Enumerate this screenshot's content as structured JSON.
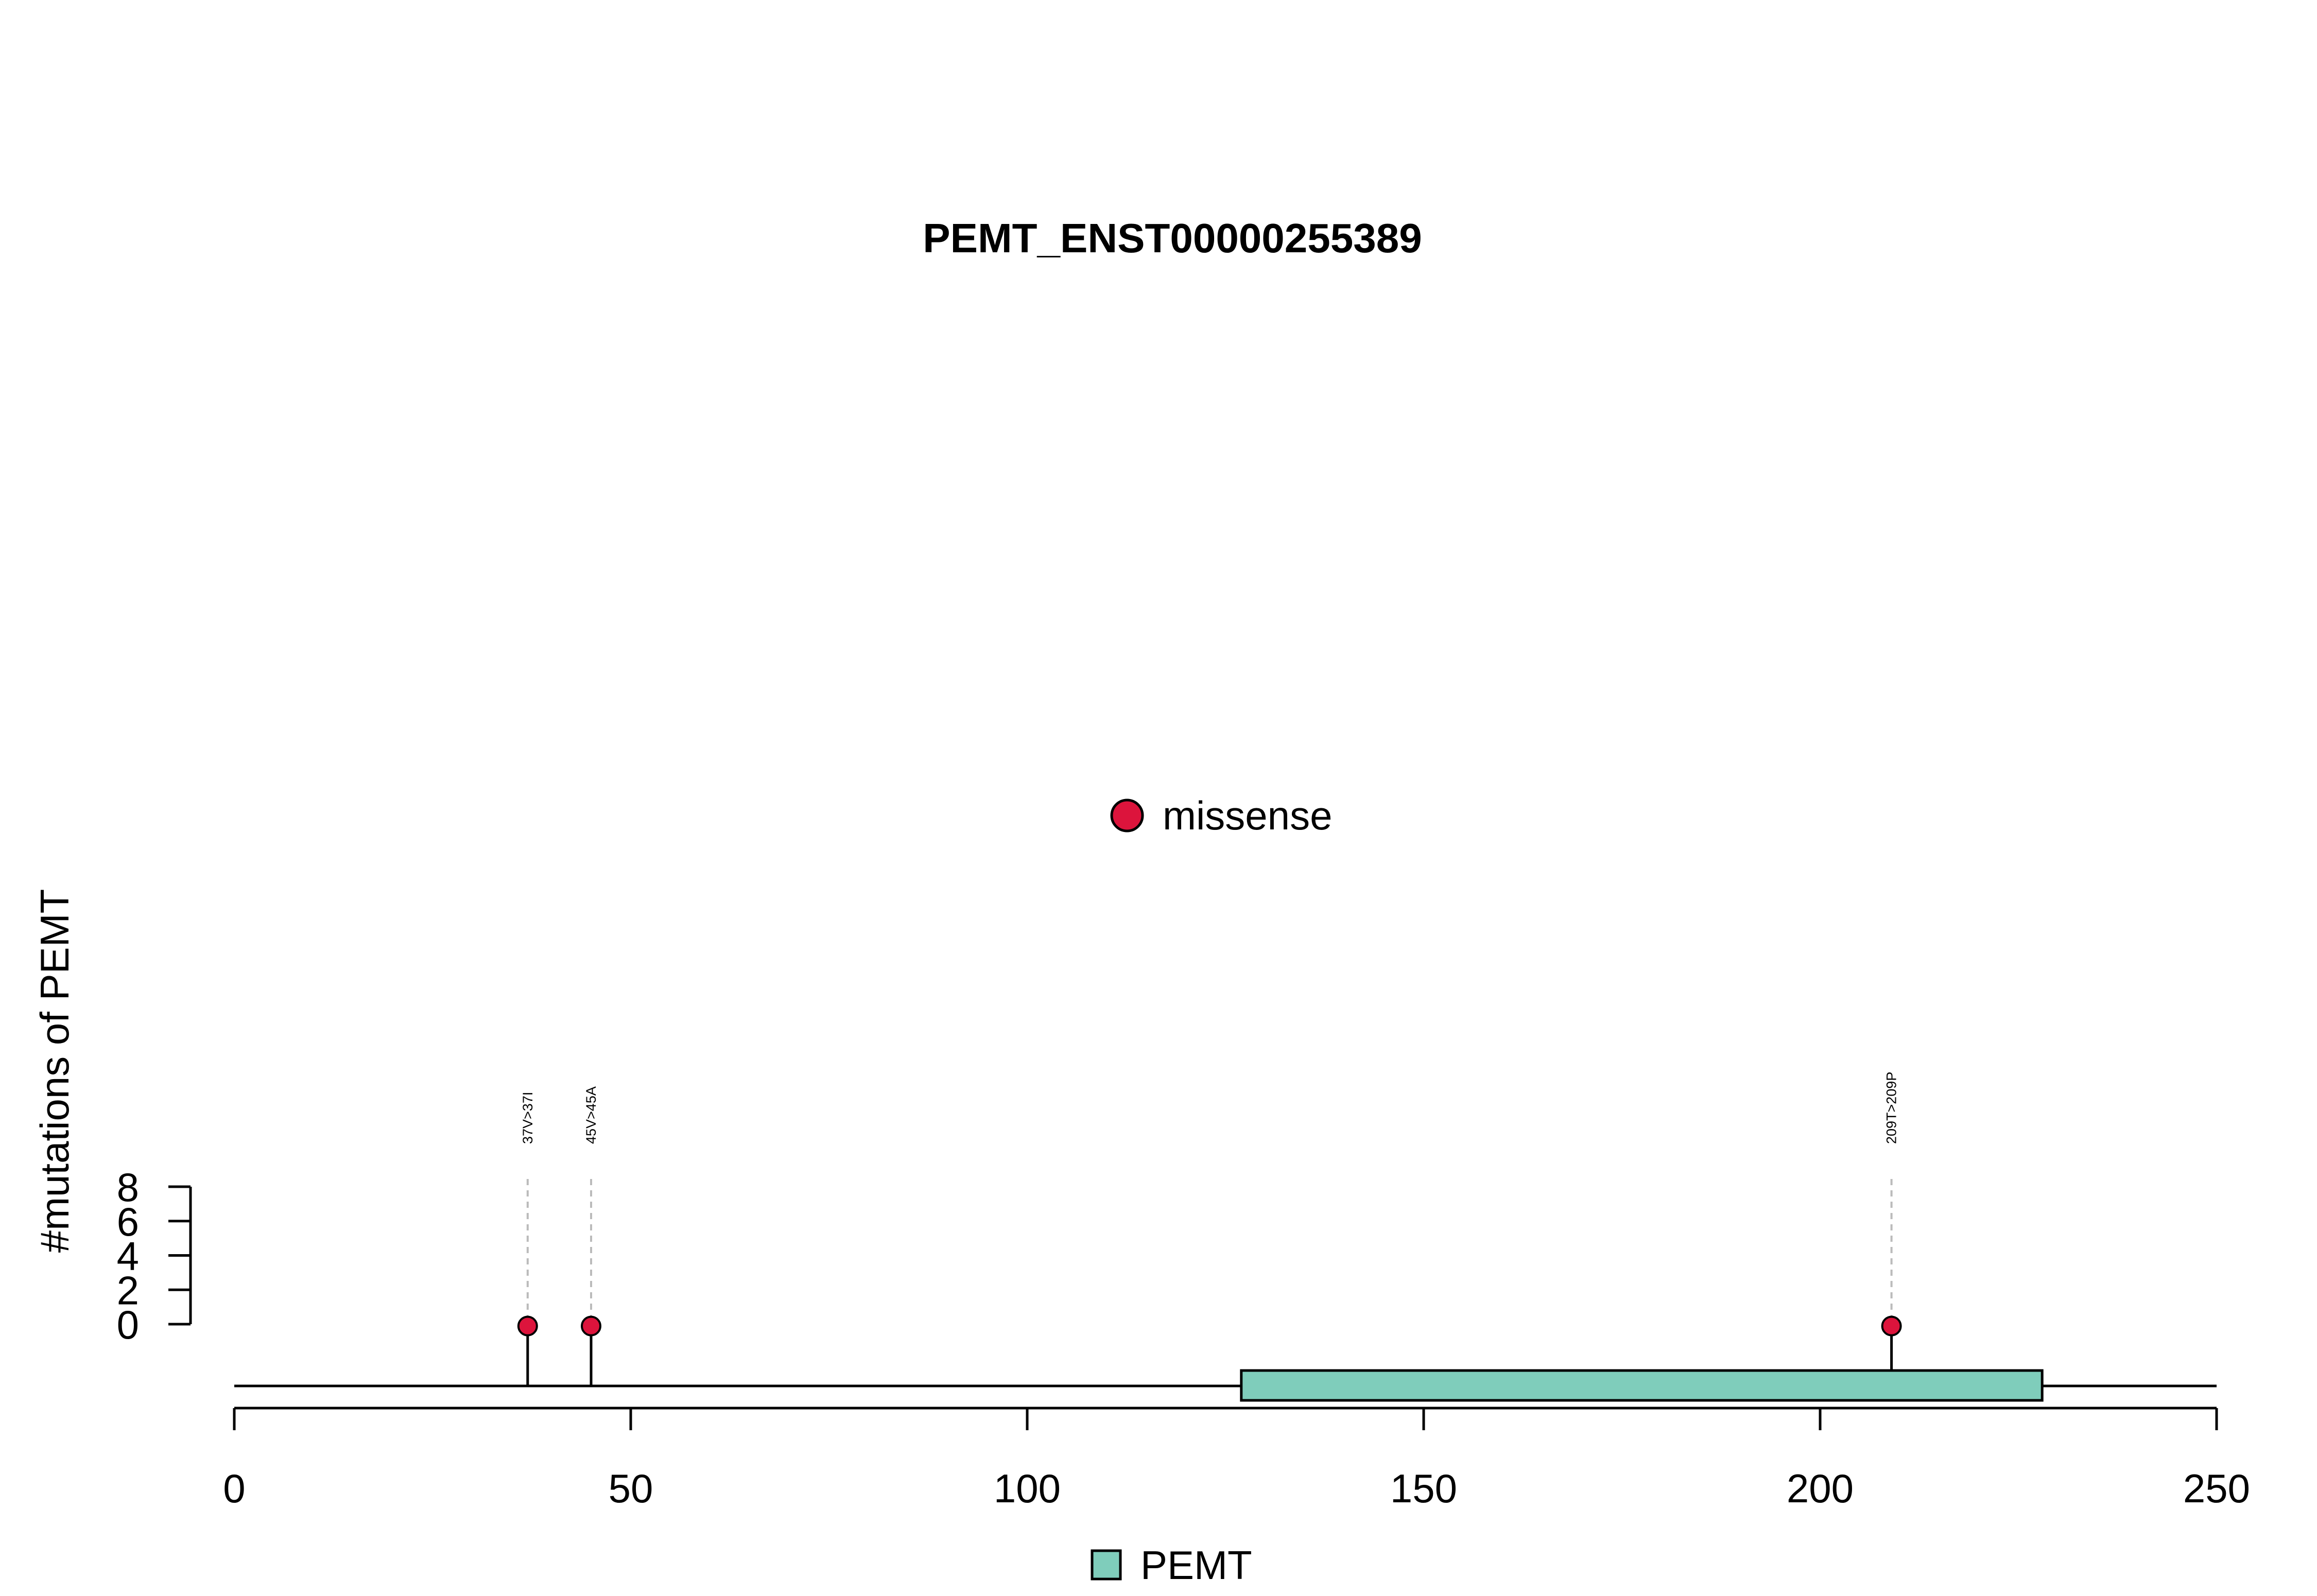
{
  "chart_data": {
    "type": "lollipop",
    "title": "PEMT_ENST00000255389",
    "ylabel": "#mutations of PEMT",
    "xlim": [
      0,
      250
    ],
    "xticks": [
      0,
      50,
      100,
      150,
      200,
      250
    ],
    "ylim": [
      0,
      8
    ],
    "yticks": [
      0,
      2,
      4,
      6,
      8
    ],
    "protein_length": 250,
    "mutations": [
      {
        "position": 37,
        "count": 1,
        "label": "37V>37I",
        "type": "missense"
      },
      {
        "position": 45,
        "count": 1,
        "label": "45V>45A",
        "type": "missense"
      },
      {
        "position": 209,
        "count": 1,
        "label": "209T>209P",
        "type": "missense"
      }
    ],
    "domains": [
      {
        "name": "PEMT",
        "start": 127,
        "end": 228,
        "color": "#7fcdbb"
      }
    ],
    "mutation_legend": [
      {
        "label": "missense",
        "color": "#dc143c"
      }
    ],
    "domain_legend": [
      {
        "label": "PEMT",
        "color": "#7fcdbb"
      }
    ]
  }
}
